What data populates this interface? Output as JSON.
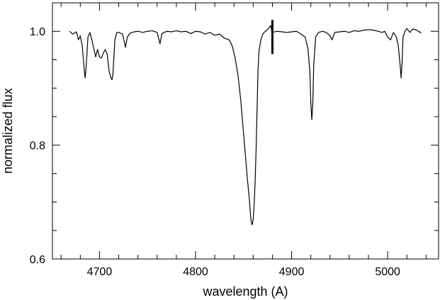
{
  "chart_data": {
    "type": "line",
    "title": "",
    "xlabel": "wavelength (A)",
    "ylabel": "normalized flux",
    "xlim": [
      4651,
      5053
    ],
    "ylim": [
      0.6,
      1.05
    ],
    "x_ticks": [
      4700,
      4800,
      4900,
      5000
    ],
    "x_tick_labels": [
      "4700",
      "4800",
      "4900",
      "5000"
    ],
    "y_ticks": [
      0.6,
      0.8,
      1.0
    ],
    "y_tick_labels": [
      "0.6",
      "0.8",
      "1.0"
    ],
    "grid": false,
    "legend": "none",
    "line_color": "#000000",
    "series": [
      {
        "x": [
          4669,
          4672,
          4676,
          4678,
          4680,
          4682,
          4684,
          4685,
          4686,
          4688,
          4690,
          4692,
          4694,
          4696,
          4698,
          4700,
          4702,
          4704,
          4706,
          4708,
          4710,
          4712,
          4713,
          4714,
          4716,
          4718,
          4720,
          4724,
          4727,
          4729,
          4732,
          4736,
          4740,
          4745,
          4750,
          4755,
          4760,
          4763,
          4765,
          4770,
          4775,
          4780,
          4785,
          4790,
          4795,
          4800,
          4805,
          4810,
          4815,
          4820,
          4825,
          4830,
          4835,
          4838,
          4841,
          4844,
          4847,
          4850,
          4852,
          4854,
          4856,
          4857,
          4858,
          4859,
          4860,
          4861,
          4862,
          4863,
          4864,
          4865,
          4866,
          4868,
          4870,
          4872,
          4874,
          4876,
          4878,
          4880,
          4885,
          4890,
          4895,
          4900,
          4905,
          4910,
          4914,
          4917,
          4919,
          4920,
          4921,
          4922,
          4923,
          4925,
          4928,
          4932,
          4936,
          4940,
          4942,
          4945,
          4950,
          4955,
          4960,
          4965,
          4970,
          4975,
          4980,
          4985,
          4990,
          4994,
          4997,
          5000,
          5003,
          5006,
          5009,
          5011,
          5013,
          5014,
          5015,
          5016,
          5018,
          5020,
          5023,
          5026,
          5030,
          5033,
          5035
        ],
        "y": [
          1.0,
          0.995,
          0.999,
          0.985,
          0.992,
          0.975,
          0.935,
          0.918,
          0.935,
          0.99,
          0.998,
          0.985,
          0.97,
          0.955,
          0.968,
          0.955,
          0.953,
          0.962,
          0.968,
          0.96,
          0.93,
          0.918,
          0.915,
          0.925,
          0.985,
          0.998,
          0.998,
          0.995,
          0.972,
          0.99,
          0.997,
          0.999,
          1.0,
          0.998,
          1.0,
          1.001,
          0.998,
          0.978,
          0.996,
          1.0,
          0.999,
          1.001,
          0.999,
          1.0,
          0.996,
          1.0,
          0.999,
          0.995,
          0.998,
          0.993,
          0.995,
          0.988,
          0.985,
          0.975,
          0.955,
          0.925,
          0.88,
          0.82,
          0.78,
          0.74,
          0.705,
          0.682,
          0.665,
          0.66,
          0.67,
          0.695,
          0.735,
          0.79,
          0.86,
          0.93,
          0.965,
          0.985,
          0.995,
          0.999,
          1.002,
          1.005,
          1.01,
          0.998,
          1.0,
          0.999,
          0.998,
          0.999,
          1.0,
          0.995,
          0.99,
          0.97,
          0.93,
          0.875,
          0.845,
          0.87,
          0.94,
          0.99,
          0.998,
          1.0,
          0.998,
          0.992,
          0.985,
          0.998,
          0.999,
          1.0,
          0.998,
          1.001,
          1.0,
          1.002,
          1.003,
          1.002,
          1.0,
          0.998,
          1.0,
          0.99,
          0.985,
          0.998,
          0.99,
          0.975,
          0.94,
          0.918,
          0.945,
          0.99,
          1.0,
          1.005,
          0.998,
          1.004,
          1.002,
          0.999,
          0.997
        ]
      }
    ],
    "marker": {
      "x": 4880,
      "y_from": 0.96,
      "y_to": 1.02
    }
  }
}
